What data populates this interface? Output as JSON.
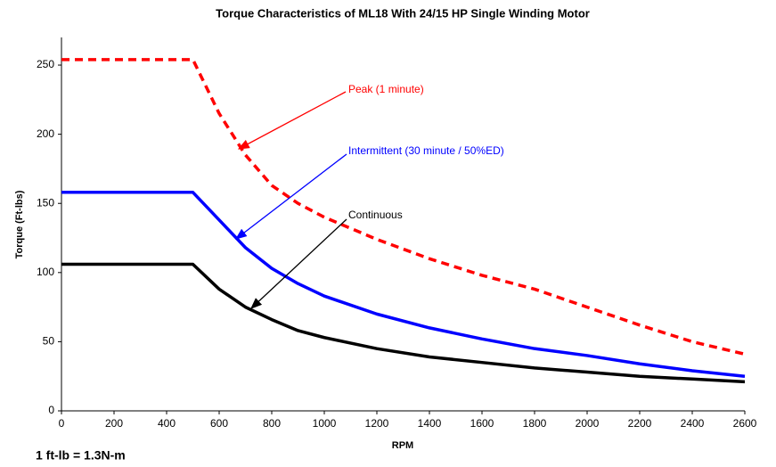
{
  "chart_data": {
    "type": "line",
    "title": "Torque Characteristics of ML18 With 24/15 HP Single Winding Motor",
    "xlabel": "RPM",
    "ylabel": "Torque (Ft-lbs)",
    "footnote": "1 ft-lb = 1.3N-m",
    "x": [
      0,
      500,
      600,
      700,
      800,
      900,
      1000,
      1200,
      1400,
      1600,
      1800,
      2000,
      2200,
      2400,
      2600
    ],
    "series": [
      {
        "name": "Peak (1 minute)",
        "color": "#ff0000",
        "dashed": true,
        "values": [
          254,
          254,
          215,
          185,
          163,
          150,
          140,
          124,
          110,
          98,
          88,
          75,
          62,
          50,
          41
        ]
      },
      {
        "name": "Intermittent (30 minute / 50%ED)",
        "color": "#0000ff",
        "dashed": false,
        "values": [
          158,
          158,
          138,
          118,
          103,
          92,
          83,
          70,
          60,
          52,
          45,
          40,
          34,
          29,
          25
        ]
      },
      {
        "name": "Continuous",
        "color": "#000000",
        "dashed": false,
        "values": [
          106,
          106,
          88,
          75,
          66,
          58,
          53,
          45,
          39,
          35,
          31,
          28,
          25,
          23,
          21
        ]
      }
    ],
    "xlim": [
      0,
      2600
    ],
    "xticks": [
      0,
      200,
      400,
      600,
      800,
      1000,
      1200,
      1400,
      1600,
      1800,
      2000,
      2200,
      2400,
      2600
    ],
    "ylim": [
      0,
      270
    ],
    "yticks": [
      0,
      50,
      100,
      150,
      200,
      250
    ]
  }
}
